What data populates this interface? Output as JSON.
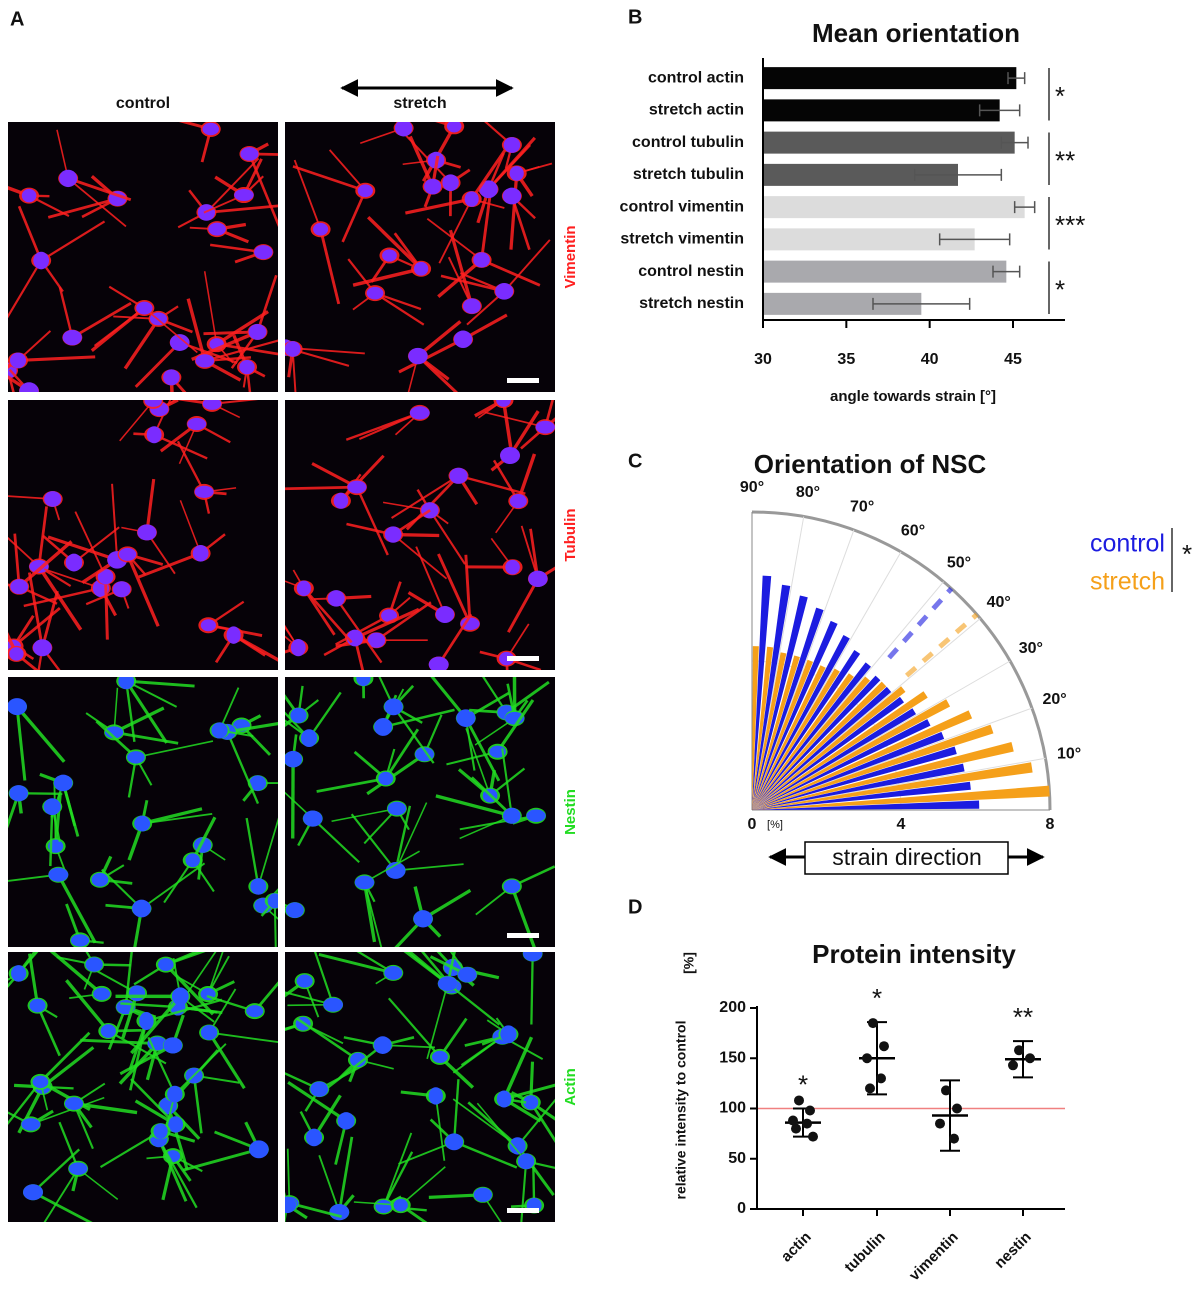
{
  "panel_labels": [
    "A",
    "B",
    "C",
    "D"
  ],
  "images": {
    "columns": [
      "control",
      "stretch"
    ],
    "rows": [
      "Vimentin",
      "Tubulin",
      "Nestin",
      "Actin"
    ]
  },
  "chart_data": [
    {
      "type": "bar",
      "orientation": "horizontal",
      "title": "Mean orientation",
      "x_label": "angle towards strain [°]",
      "categories": [
        "control actin",
        "stretch actin",
        "control tubulin",
        "stretch tubulin",
        "control vimentin",
        "stretch vimentin",
        "control nestin",
        "stretch nestin"
      ],
      "values": [
        45.2,
        44.2,
        45.1,
        41.7,
        45.7,
        42.7,
        44.6,
        39.5
      ],
      "errors": [
        0.5,
        1.2,
        0.8,
        2.6,
        0.6,
        2.1,
        0.8,
        2.9
      ],
      "colors": [
        "#050505",
        "#050505",
        "#5a5a5a",
        "#5a5a5a",
        "#dcdcdc",
        "#dcdcdc",
        "#a9a9ad",
        "#a9a9ad"
      ],
      "xlim": [
        30,
        48
      ],
      "xticks": [
        30,
        35,
        40,
        45
      ],
      "significance": [
        "*",
        "**",
        "***",
        "*"
      ]
    },
    {
      "type": "polar_bar",
      "title": "Orientation of NSC",
      "r_unit": "[%]",
      "annotation": "strain direction",
      "bin_centers": [
        2.5,
        7.5,
        12.5,
        17.5,
        22.5,
        27.5,
        32.5,
        37.5,
        42.5,
        47.5,
        52.5,
        57.5,
        62.5,
        67.5,
        72.5,
        77.5,
        82.5,
        87.5
      ],
      "rlim": [
        0,
        8
      ],
      "rticks": [
        0,
        4,
        8
      ],
      "theta_ticks": [
        {
          "value": 10,
          "label": "10°"
        },
        {
          "value": 20,
          "label": "20°"
        },
        {
          "value": 30,
          "label": "30°"
        },
        {
          "value": 40,
          "label": "40°"
        },
        {
          "value": 50,
          "label": "50°"
        },
        {
          "value": 60,
          "label": "60°"
        },
        {
          "value": 70,
          "label": "70°"
        },
        {
          "value": 80,
          "label": "80°"
        },
        {
          "value": 90,
          "label": "90°"
        }
      ],
      "series": [
        {
          "name": "control",
          "color": "#1c1ce0",
          "mean_angle": 48,
          "values": [
            6.1,
            5.9,
            5.8,
            5.7,
            5.5,
            5.3,
            5.1,
            5.0,
            4.9,
            4.9,
            5.0,
            5.1,
            5.3,
            5.5,
            5.7,
            5.9,
            6.1,
            6.3
          ]
        },
        {
          "name": "stretch",
          "color": "#f5a01a",
          "mean_angle": 41,
          "values": [
            8.0,
            7.6,
            7.2,
            6.8,
            6.4,
            6.0,
            5.6,
            5.2,
            4.9,
            4.7,
            4.5,
            4.4,
            4.3,
            4.3,
            4.3,
            4.3,
            4.4,
            4.4
          ]
        }
      ],
      "significance": "*"
    },
    {
      "type": "dot_plot",
      "title": "Protein intensity",
      "y_label": "relative intensity to control",
      "y_unit": "[%]",
      "categories": [
        "actin",
        "tubulin",
        "vimentin",
        "nestin"
      ],
      "points": [
        [
          108,
          98,
          88,
          85,
          80,
          72
        ],
        [
          185,
          162,
          150,
          130,
          120
        ],
        [
          118,
          100,
          85,
          70
        ],
        [
          158,
          150,
          143
        ]
      ],
      "means": [
        86,
        150,
        93,
        149
      ],
      "sd": [
        14,
        36,
        35,
        18
      ],
      "ylim": [
        0,
        200
      ],
      "yticks": [
        0,
        50,
        100,
        150,
        200
      ],
      "reference_line": 100,
      "reference_color": "#f08080",
      "significance": [
        "*",
        "*",
        null,
        "**"
      ]
    }
  ]
}
